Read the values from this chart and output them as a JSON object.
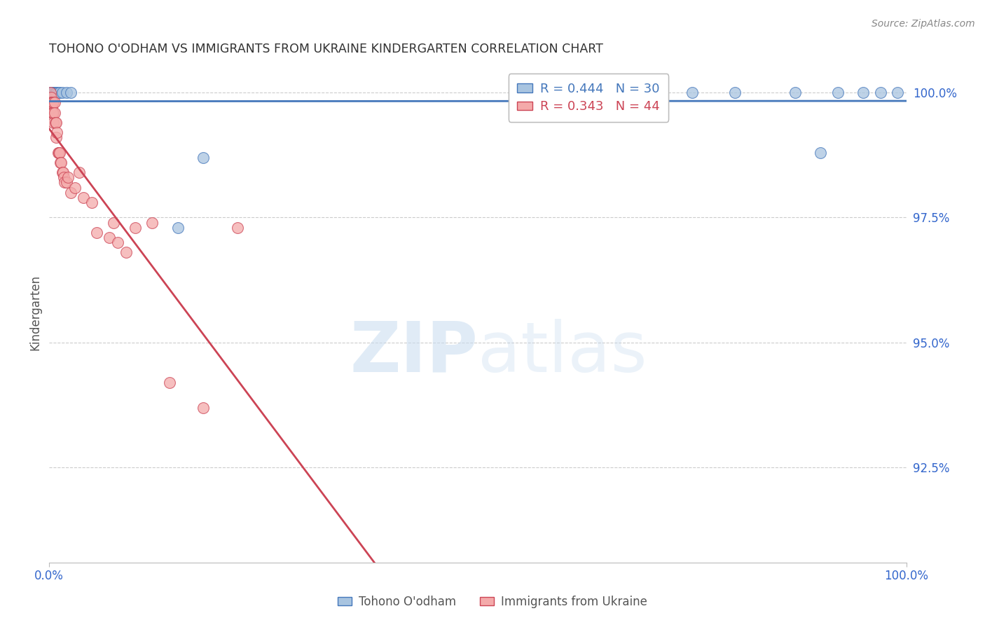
{
  "title": "TOHONO O'ODHAM VS IMMIGRANTS FROM UKRAINE KINDERGARTEN CORRELATION CHART",
  "source": "Source: ZipAtlas.com",
  "ylabel": "Kindergarten",
  "watermark_zip": "ZIP",
  "watermark_atlas": "atlas",
  "blue_label": "Tohono O'odham",
  "pink_label": "Immigrants from Ukraine",
  "blue_R": 0.444,
  "blue_N": 30,
  "pink_R": 0.343,
  "pink_N": 44,
  "blue_color": "#A8C4E0",
  "pink_color": "#F4AAAA",
  "blue_line_color": "#4477BB",
  "pink_line_color": "#CC4455",
  "blue_edge_color": "#4477BB",
  "pink_edge_color": "#CC4455",
  "axis_color": "#3366CC",
  "title_color": "#333333",
  "xlim": [
    0.0,
    1.0
  ],
  "ylim": [
    0.906,
    1.006
  ],
  "yticks": [
    0.925,
    0.95,
    0.975,
    1.0
  ],
  "ytick_labels": [
    "92.5%",
    "95.0%",
    "97.5%",
    "100.0%"
  ],
  "blue_x": [
    0.001,
    0.002,
    0.003,
    0.003,
    0.004,
    0.005,
    0.005,
    0.006,
    0.007,
    0.008,
    0.009,
    0.01,
    0.012,
    0.015,
    0.02,
    0.025,
    0.15,
    0.18,
    0.55,
    0.6,
    0.65,
    0.7,
    0.75,
    0.8,
    0.87,
    0.9,
    0.92,
    0.95,
    0.97,
    0.99
  ],
  "blue_y": [
    1.0,
    1.0,
    1.0,
    1.0,
    1.0,
    1.0,
    1.0,
    1.0,
    1.0,
    1.0,
    1.0,
    1.0,
    1.0,
    1.0,
    1.0,
    1.0,
    0.973,
    0.987,
    1.0,
    1.0,
    1.0,
    1.0,
    1.0,
    1.0,
    1.0,
    0.988,
    1.0,
    1.0,
    1.0,
    1.0
  ],
  "pink_x": [
    0.001,
    0.001,
    0.002,
    0.002,
    0.003,
    0.003,
    0.003,
    0.004,
    0.004,
    0.005,
    0.005,
    0.005,
    0.006,
    0.006,
    0.007,
    0.008,
    0.008,
    0.009,
    0.01,
    0.011,
    0.012,
    0.013,
    0.014,
    0.015,
    0.016,
    0.017,
    0.018,
    0.02,
    0.022,
    0.025,
    0.03,
    0.035,
    0.04,
    0.05,
    0.055,
    0.07,
    0.075,
    0.08,
    0.09,
    0.1,
    0.12,
    0.14,
    0.18,
    0.22
  ],
  "pink_y": [
    1.0,
    0.998,
    0.999,
    0.998,
    0.998,
    0.997,
    0.996,
    0.998,
    0.996,
    0.998,
    0.996,
    0.994,
    0.998,
    0.996,
    0.994,
    0.994,
    0.991,
    0.992,
    0.988,
    0.988,
    0.988,
    0.986,
    0.986,
    0.984,
    0.984,
    0.983,
    0.982,
    0.982,
    0.983,
    0.98,
    0.981,
    0.984,
    0.979,
    0.978,
    0.972,
    0.971,
    0.974,
    0.97,
    0.968,
    0.973,
    0.974,
    0.942,
    0.937,
    0.973
  ]
}
